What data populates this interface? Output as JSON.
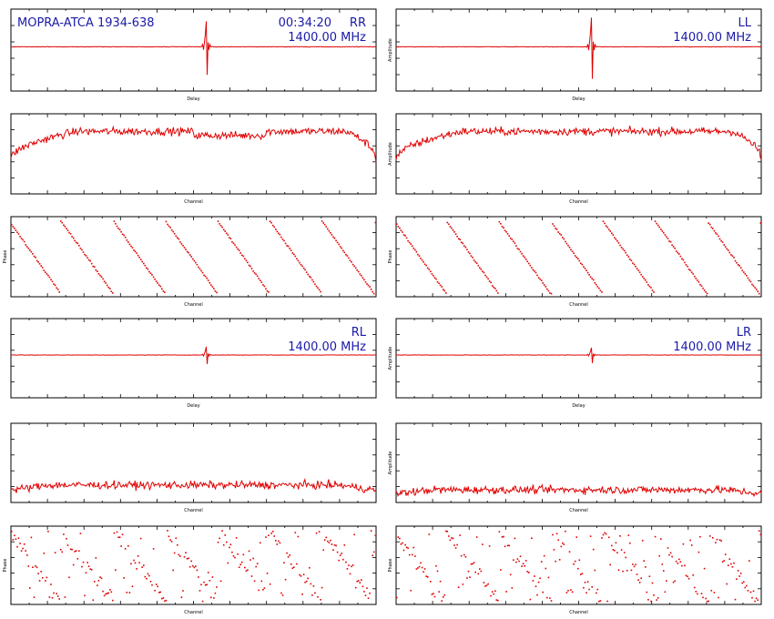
{
  "chart_data": [
    {
      "panel": "delay",
      "pol": "RR",
      "col": 0,
      "row": 0,
      "type": "line",
      "header_left": "MOPRA-ATCA 1934-638",
      "header_time": "00:34:20",
      "header_pol": "RR",
      "header_freq": "1400.00 MHz",
      "xlabel": "Delay",
      "ylabel": "",
      "baseline": 0,
      "noise": 0.3,
      "peak_pos": 0.535,
      "peak_amp": 28
    },
    {
      "panel": "delay",
      "pol": "LL",
      "col": 1,
      "row": 0,
      "type": "line",
      "header_left": "",
      "header_time": "",
      "header_pol": "LL",
      "header_freq": "1400.00 MHz",
      "xlabel": "Delay",
      "ylabel": "Amplitude",
      "baseline": 0,
      "noise": 0.3,
      "peak_pos": 0.535,
      "peak_amp": 32
    },
    {
      "panel": "spectrum",
      "pol": "RR",
      "col": 0,
      "row": 1,
      "type": "line",
      "xlabel": "Channel",
      "ylabel": "",
      "level": 0.78,
      "noise": 0.05
    },
    {
      "panel": "spectrum",
      "pol": "LL",
      "col": 1,
      "row": 1,
      "type": "line",
      "xlabel": "Channel",
      "ylabel": "Amplitude",
      "level": 0.78,
      "noise": 0.05
    },
    {
      "panel": "phase",
      "pol": "RR",
      "col": 0,
      "row": 2,
      "type": "scatter",
      "xlabel": "Channel",
      "ylabel": "Phase",
      "wraps": 7,
      "scatter": 0.01
    },
    {
      "panel": "phase",
      "pol": "LL",
      "col": 1,
      "row": 2,
      "type": "scatter",
      "xlabel": "Channel",
      "ylabel": "Phase",
      "wraps": 7,
      "scatter": 0.01
    },
    {
      "panel": "delay",
      "pol": "RL",
      "col": 0,
      "row": 3,
      "type": "line",
      "header_left": "",
      "header_time": "",
      "header_pol": "RL",
      "header_freq": "1400.00 MHz",
      "xlabel": "Delay",
      "ylabel": "",
      "baseline": 0,
      "noise": 0.2,
      "peak_pos": 0.535,
      "peak_amp": 9
    },
    {
      "panel": "delay",
      "pol": "LR",
      "col": 1,
      "row": 3,
      "type": "line",
      "header_left": "",
      "header_time": "",
      "header_pol": "LR",
      "header_freq": "1400.00 MHz",
      "xlabel": "Delay",
      "ylabel": "Amplitude",
      "baseline": 0,
      "noise": 0.2,
      "peak_pos": 0.535,
      "peak_amp": 8
    },
    {
      "panel": "spectrum",
      "pol": "RL",
      "col": 0,
      "row": 4,
      "type": "line",
      "xlabel": "Channel",
      "ylabel": "",
      "level": 0.22,
      "noise": 0.05
    },
    {
      "panel": "spectrum",
      "pol": "LR",
      "col": 1,
      "row": 4,
      "type": "line",
      "xlabel": "Channel",
      "ylabel": "Amplitude",
      "level": 0.16,
      "noise": 0.05
    },
    {
      "panel": "phase",
      "pol": "RL",
      "col": 0,
      "row": 5,
      "type": "scatter",
      "xlabel": "Channel",
      "ylabel": "Phase",
      "wraps": 7,
      "scatter": 0.1
    },
    {
      "panel": "phase",
      "pol": "LR",
      "col": 1,
      "row": 5,
      "type": "scatter",
      "xlabel": "Channel",
      "ylabel": "Phase",
      "wraps": 7,
      "scatter": 0.12
    }
  ],
  "colors": {
    "trace": "#e00000",
    "frame": "#000000",
    "header_text": "#1a1aa8"
  }
}
